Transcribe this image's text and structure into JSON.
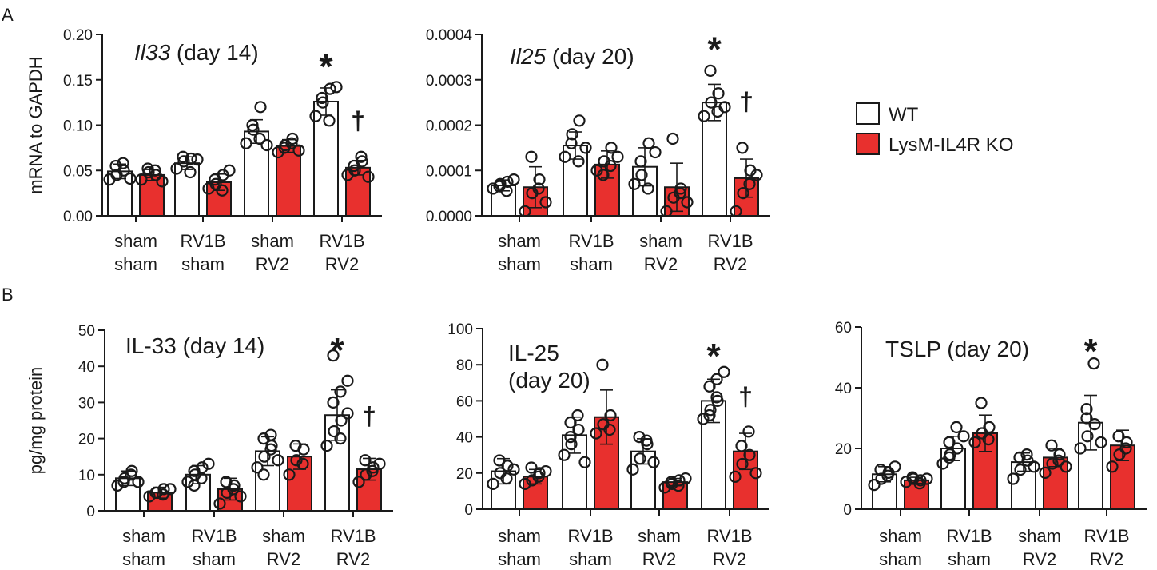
{
  "panel_labels": {
    "A": "A",
    "B": "B"
  },
  "legend": [
    {
      "label": "WT",
      "fill": "#ffffff"
    },
    {
      "label": "LysM-IL4R KO",
      "fill": "#e8302e"
    }
  ],
  "colors": {
    "wt": "#ffffff",
    "ko": "#e8302e",
    "stroke": "#1a1a1a"
  },
  "chart_data": [
    {
      "type": "bar",
      "panel": "A",
      "title_italic": "Il33",
      "title_rest": " (day 14)",
      "ylabel": "mRNA to GAPDH",
      "ylim": [
        0,
        0.2
      ],
      "yticks": [
        "0.00",
        "0.05",
        "0.10",
        "0.15",
        "0.20"
      ],
      "categories": [
        [
          "sham",
          "sham"
        ],
        [
          "RV1B",
          "sham"
        ],
        [
          "sham",
          "RV2"
        ],
        [
          "RV1B",
          "RV2"
        ]
      ],
      "series": [
        {
          "name": "WT",
          "values": [
            0.049,
            0.058,
            0.093,
            0.126
          ],
          "errors": [
            0.008,
            0.007,
            0.013,
            0.015
          ],
          "points": [
            [
              0.04,
              0.045,
              0.05,
              0.055,
              0.058,
              0.041
            ],
            [
              0.052,
              0.06,
              0.063,
              0.065,
              0.048,
              0.062
            ],
            [
              0.08,
              0.095,
              0.12,
              0.1,
              0.085,
              0.078
            ],
            [
              0.11,
              0.125,
              0.14,
              0.13,
              0.105,
              0.142
            ]
          ]
        },
        {
          "name": "LysM-IL4R KO",
          "values": [
            0.045,
            0.037,
            0.077,
            0.053
          ],
          "errors": [
            0.006,
            0.009,
            0.007,
            0.008
          ],
          "points": [
            [
              0.04,
              0.048,
              0.045,
              0.052,
              0.05,
              0.038
            ],
            [
              0.03,
              0.035,
              0.045,
              0.04,
              0.028,
              0.05
            ],
            [
              0.07,
              0.078,
              0.085,
              0.075,
              0.08,
              0.072
            ],
            [
              0.045,
              0.05,
              0.06,
              0.055,
              0.065,
              0.043
            ]
          ]
        }
      ],
      "annotations": [
        {
          "symbol": "*",
          "category": 3,
          "series": 0,
          "value": 0.171
        },
        {
          "symbol": "†",
          "category": 3,
          "series": 1,
          "value": 0.104
        }
      ]
    },
    {
      "type": "bar",
      "panel": "A",
      "title_italic": "Il25",
      "title_rest": " (day 20)",
      "ylabel": "",
      "ylim": [
        0,
        0.0004
      ],
      "yticks": [
        "0.0000",
        "0.0001",
        "0.0002",
        "0.0003",
        "0.0004"
      ],
      "categories": [
        [
          "sham",
          "sham"
        ],
        [
          "RV1B",
          "sham"
        ],
        [
          "sham",
          "RV2"
        ],
        [
          "RV1B",
          "RV2"
        ]
      ],
      "series": [
        {
          "name": "WT",
          "values": [
            6.7e-05,
            0.000155,
            0.000108,
            0.00025
          ],
          "errors": [
            1.2e-05,
            3e-05,
            4.2e-05,
            4e-05
          ],
          "points": [
            [
              6e-05,
              7e-05,
              7.5e-05,
              6.5e-05,
              5.5e-05,
              8e-05
            ],
            [
              0.00013,
              0.00018,
              0.00021,
              0.00016,
              0.00012,
              0.00015
            ],
            [
              7e-05,
              9e-05,
              0.00016,
              0.00012,
              6e-05,
              0.00014
            ],
            [
              0.00022,
              0.00025,
              0.00027,
              0.00032,
              0.00023,
              0.00024
            ]
          ]
        },
        {
          "name": "LysM-IL4R KO",
          "values": [
            6.3e-05,
            0.000113,
            6.3e-05,
            8.3e-05
          ],
          "errors": [
            4.5e-05,
            3e-05,
            5.3e-05,
            4.2e-05
          ],
          "points": [
            [
              1e-05,
              5e-05,
              8e-05,
              0.00013,
              6e-05,
              3e-05
            ],
            [
              0.0001,
              0.00012,
              0.00015,
              9e-05,
              0.00011,
              0.00013
            ],
            [
              1e-05,
              4e-05,
              6e-05,
              0.00017,
              5e-05,
              3e-05
            ],
            [
              1e-05,
              5e-05,
              0.0001,
              0.00015,
              7e-05,
              9e-05
            ]
          ]
        }
      ],
      "annotations": [
        {
          "symbol": "*",
          "category": 3,
          "series": 0,
          "value": 0.00038
        },
        {
          "symbol": "†",
          "category": 3,
          "series": 1,
          "value": 0.00025
        }
      ]
    },
    {
      "type": "bar",
      "panel": "B",
      "title_lines": [
        "IL-33 (day 14)"
      ],
      "ylabel": "pg/mg protein",
      "ylim": [
        0,
        50
      ],
      "yticks": [
        "0",
        "10",
        "20",
        "30",
        "40",
        "50"
      ],
      "categories": [
        [
          "sham",
          "sham"
        ],
        [
          "RV1B",
          "sham"
        ],
        [
          "sham",
          "RV2"
        ],
        [
          "RV1B",
          "RV2"
        ]
      ],
      "series": [
        {
          "name": "WT",
          "values": [
            9,
            10,
            16.5,
            26.5
          ],
          "errors": [
            2,
            2.5,
            4,
            7
          ],
          "points": [
            [
              7,
              9,
              11,
              8,
              10,
              8
            ],
            [
              8,
              10,
              12,
              11,
              9,
              13,
              7
            ],
            [
              12,
              15,
              18,
              20,
              21,
              14,
              10,
              17
            ],
            [
              18,
              22,
              25,
              30,
              33,
              36,
              43,
              20,
              27
            ]
          ]
        },
        {
          "name": "LysM-IL4R KO",
          "values": [
            5,
            6,
            15,
            11.5
          ],
          "errors": [
            1.5,
            3,
            3.5,
            3
          ],
          "points": [
            [
              4,
              5,
              6,
              5,
              4.5,
              6
            ],
            [
              2,
              5,
              7,
              8,
              6,
              4
            ],
            [
              10,
              14,
              17,
              18,
              13
            ],
            [
              8,
              10,
              12,
              14,
              11,
              13
            ]
          ]
        }
      ],
      "annotations": [
        {
          "symbol": "*",
          "category": 3,
          "series": 0,
          "value": 46
        },
        {
          "symbol": "†",
          "category": 3,
          "series": 1,
          "value": 26
        }
      ]
    },
    {
      "type": "bar",
      "panel": "B",
      "title_lines": [
        "IL-25",
        "(day 20)"
      ],
      "ylabel": "",
      "ylim": [
        0,
        100
      ],
      "yticks": [
        "0",
        "20",
        "40",
        "60",
        "80",
        "100"
      ],
      "categories": [
        [
          "sham",
          "sham"
        ],
        [
          "RV1B",
          "sham"
        ],
        [
          "sham",
          "RV2"
        ],
        [
          "RV1B",
          "RV2"
        ]
      ],
      "series": [
        {
          "name": "WT",
          "values": [
            21,
            41,
            32,
            60
          ],
          "errors": [
            7,
            10,
            7,
            12
          ],
          "points": [
            [
              14,
              20,
              24,
              27,
              17,
              22
            ],
            [
              30,
              36,
              44,
              48,
              52,
              26,
              40
            ],
            [
              22,
              28,
              36,
              40,
              38,
              26
            ],
            [
              50,
              55,
              60,
              68,
              72,
              76,
              52,
              62
            ]
          ]
        },
        {
          "name": "LysM-IL4R KO",
          "values": [
            18,
            51,
            15,
            32
          ],
          "errors": [
            4,
            15,
            2,
            10
          ],
          "points": [
            [
              14,
              16,
              20,
              23,
              18,
              21
            ],
            [
              42,
              47,
              52,
              80,
              44
            ],
            [
              12,
              14,
              16,
              15,
              13,
              17
            ],
            [
              18,
              25,
              30,
              35,
              43,
              20
            ]
          ]
        }
      ],
      "annotations": [
        {
          "symbol": "*",
          "category": 3,
          "series": 0,
          "value": 88
        },
        {
          "symbol": "†",
          "category": 3,
          "series": 1,
          "value": 62
        }
      ]
    },
    {
      "type": "bar",
      "panel": "B",
      "title_lines": [
        "TSLP (day 20)"
      ],
      "ylabel": "",
      "ylim": [
        0,
        60
      ],
      "yticks": [
        "0",
        "20",
        "40",
        "60"
      ],
      "categories": [
        [
          "sham",
          "sham"
        ],
        [
          "RV1B",
          "sham"
        ],
        [
          "sham",
          "RV2"
        ],
        [
          "RV1B",
          "RV2"
        ]
      ],
      "series": [
        {
          "name": "WT",
          "values": [
            11.5,
            20,
            15.5,
            28.5
          ],
          "errors": [
            2.5,
            4,
            3,
            9
          ],
          "points": [
            [
              8,
              10,
              12,
              13,
              11,
              14
            ],
            [
              15,
              18,
              20,
              22,
              27,
              24,
              17
            ],
            [
              10,
              13,
              16,
              17,
              18,
              14
            ],
            [
              20,
              24,
              28,
              33,
              48,
              22,
              30
            ]
          ]
        },
        {
          "name": "LysM-IL4R KO",
          "values": [
            9.5,
            25,
            17,
            21
          ],
          "errors": [
            1,
            6,
            3,
            5
          ],
          "points": [
            [
              9,
              10,
              9.5,
              10.5,
              8.5,
              10
            ],
            [
              22,
              25,
              27,
              35,
              23
            ],
            [
              12,
              15,
              18,
              21,
              16,
              14
            ],
            [
              14,
              18,
              22,
              24,
              20
            ]
          ]
        }
      ],
      "annotations": [
        {
          "symbol": "*",
          "category": 3,
          "series": 0,
          "value": 54
        }
      ]
    }
  ]
}
